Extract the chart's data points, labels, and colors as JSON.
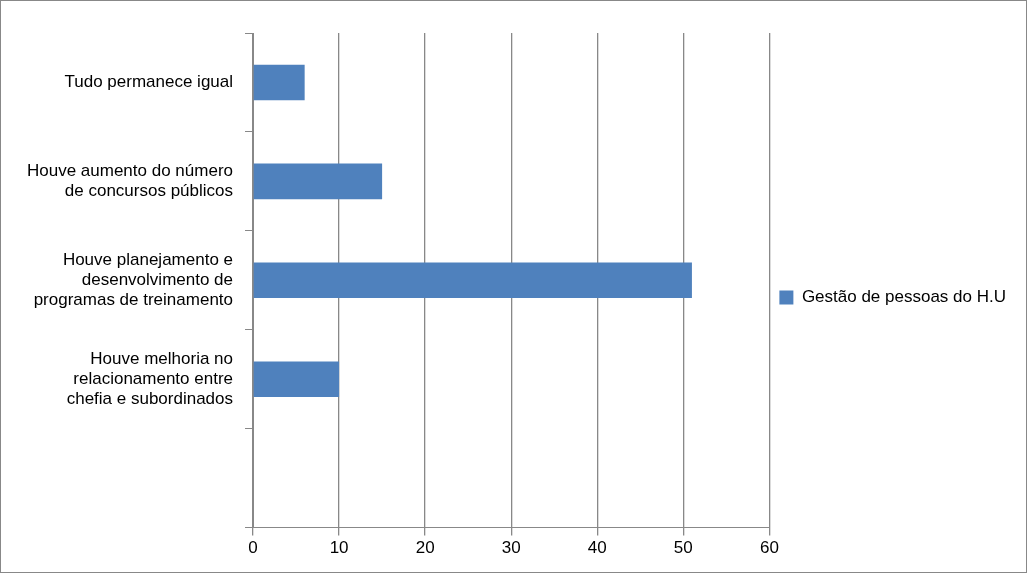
{
  "chart_data": {
    "type": "bar",
    "orientation": "horizontal",
    "categories": [
      "Tudo permanece igual",
      "Houve aumento do número de concursos públicos",
      "Houve planejamento e desenvolvimento de programas de treinamento",
      "Houve melhoria no relacionamento entre chefia e subordinados",
      null
    ],
    "series": [
      {
        "name": "Gestão de pessoas do H.U",
        "color": "#4f81bd",
        "values": [
          6,
          15,
          51,
          10,
          null
        ]
      }
    ],
    "xlim": [
      0,
      60
    ],
    "xticks": [
      0,
      10,
      20,
      30,
      40,
      50,
      60
    ],
    "grid": "x",
    "legend": "right"
  }
}
